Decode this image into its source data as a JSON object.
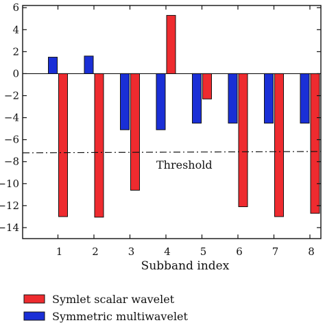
{
  "chart_data": {
    "type": "bar",
    "categories": [
      "1",
      "2",
      "3",
      "4",
      "5",
      "6",
      "7",
      "8"
    ],
    "series": [
      {
        "name": "Symmetric multiwavelet",
        "color": "#1a2fd6",
        "values": [
          1.5,
          1.6,
          -5.1,
          -5.1,
          -4.5,
          -4.5,
          -4.5,
          -4.5
        ]
      },
      {
        "name": "Symlet scalar wavelet",
        "color": "#ee2b2f",
        "values": [
          -13.0,
          -13.05,
          -10.6,
          5.3,
          -2.3,
          -12.1,
          -13.0,
          -12.7
        ]
      }
    ],
    "xlabel": "Subband index",
    "ylabel": "",
    "ylim": [
      -15,
      6.2
    ],
    "yticks": [
      6,
      4,
      2,
      0,
      -2,
      -4,
      -6,
      -8,
      -10,
      -12,
      -14
    ],
    "threshold": {
      "value": -7.2,
      "label": "Threshold"
    },
    "legend": {
      "placement": "bottom-left"
    },
    "grid": false
  }
}
